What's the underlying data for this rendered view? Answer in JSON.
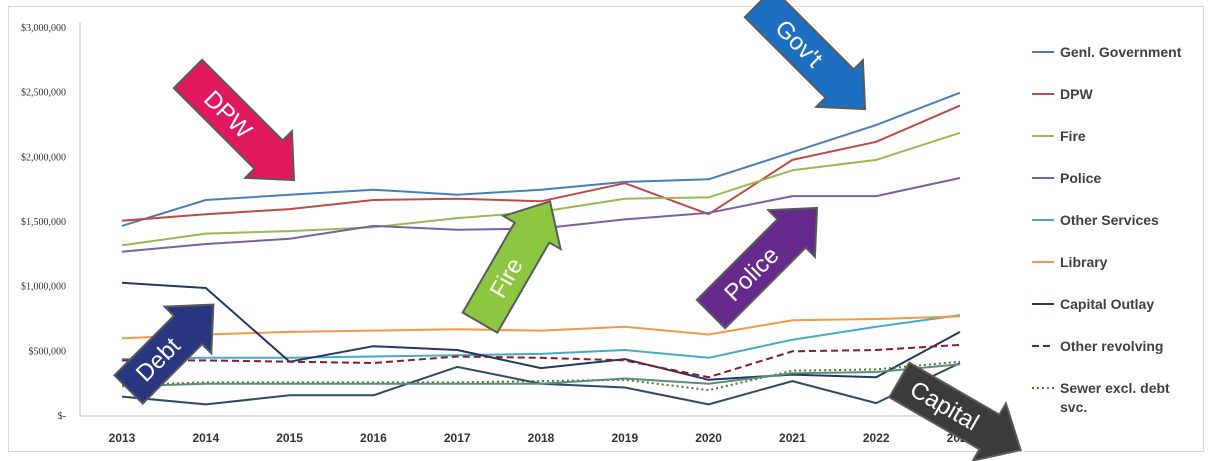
{
  "chart_data": {
    "type": "line",
    "categories": [
      "2013",
      "2014",
      "2015",
      "2016",
      "2017",
      "2018",
      "2019",
      "2020",
      "2021",
      "2022",
      "2023"
    ],
    "y_ticks": [
      "$3,000,000",
      "$2,500,000",
      "$2,000,000",
      "$1,500,000",
      "$1,000,000",
      "$500,000",
      "$-"
    ],
    "ylim": [
      0,
      3000000
    ],
    "grid": false,
    "legend_position": "right",
    "series": [
      {
        "name": "Genl. Government",
        "color": "#4a7ebb",
        "dash": "solid",
        "values": [
          1470000,
          1670000,
          1710000,
          1750000,
          1710000,
          1750000,
          1810000,
          1830000,
          2040000,
          2250000,
          2500000
        ]
      },
      {
        "name": "DPW",
        "color": "#be4b48",
        "dash": "solid",
        "values": [
          1510000,
          1560000,
          1600000,
          1670000,
          1680000,
          1660000,
          1800000,
          1560000,
          1980000,
          2120000,
          2400000
        ]
      },
      {
        "name": "Fire",
        "color": "#98b954",
        "dash": "solid",
        "values": [
          1320000,
          1410000,
          1430000,
          1460000,
          1530000,
          1580000,
          1680000,
          1690000,
          1900000,
          1980000,
          2190000
        ]
      },
      {
        "name": "Police",
        "color": "#7d60a0",
        "dash": "solid",
        "values": [
          1270000,
          1330000,
          1370000,
          1470000,
          1440000,
          1450000,
          1520000,
          1570000,
          1700000,
          1700000,
          1840000
        ]
      },
      {
        "name": "Other Services",
        "color": "#46aac5",
        "dash": "solid",
        "values": [
          440000,
          450000,
          450000,
          460000,
          470000,
          480000,
          510000,
          450000,
          590000,
          690000,
          780000
        ]
      },
      {
        "name": "Library",
        "color": "#f79646",
        "dash": "solid",
        "values": [
          600000,
          630000,
          650000,
          660000,
          670000,
          660000,
          690000,
          630000,
          740000,
          750000,
          770000
        ]
      },
      {
        "name": "Capital Outlay",
        "color": "#1f3864",
        "dash": "solid",
        "values": [
          1030000,
          990000,
          420000,
          540000,
          510000,
          370000,
          440000,
          280000,
          320000,
          300000,
          650000
        ]
      },
      {
        "name": "Other revolving",
        "color": "#8b1a2c",
        "dash": "dashed",
        "values": [
          430000,
          430000,
          420000,
          410000,
          460000,
          450000,
          430000,
          300000,
          500000,
          510000,
          550000
        ]
      },
      {
        "name": "Sewer excl. debt svc.",
        "color": "#4f7a28",
        "dash": "dotted",
        "values": [
          240000,
          260000,
          260000,
          260000,
          260000,
          270000,
          280000,
          200000,
          350000,
          360000,
          420000
        ]
      },
      {
        "name": "",
        "color": "#2e4a6b",
        "dash": "solid",
        "values": [
          150000,
          90000,
          160000,
          160000,
          380000,
          250000,
          220000,
          90000,
          270000,
          100000,
          410000
        ]
      },
      {
        "name": "",
        "color": "#5b8c7a",
        "dash": "solid",
        "values": [
          230000,
          250000,
          250000,
          250000,
          250000,
          250000,
          290000,
          250000,
          330000,
          340000,
          400000
        ]
      }
    ],
    "annotations": [
      {
        "text": "DPW",
        "color": "#e0195f"
      },
      {
        "text": "Gov't",
        "color": "#1c6fc1"
      },
      {
        "text": "Fire",
        "color": "#8dc641"
      },
      {
        "text": "Police",
        "color": "#652a8c"
      },
      {
        "text": "Debt",
        "color": "#27367f"
      },
      {
        "text": "Capital",
        "color": "#3b3b3b"
      }
    ]
  }
}
